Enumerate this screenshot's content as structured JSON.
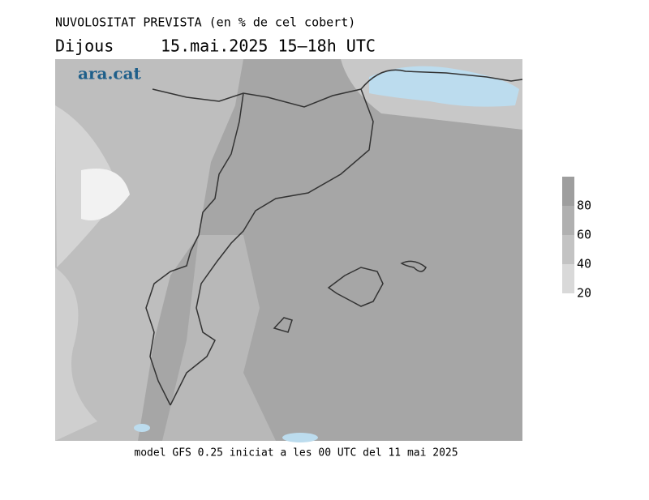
{
  "header": {
    "title": "NUVOLOSITAT PREVISTA (en % de cel cobert)",
    "day": "Dijous",
    "date": "15.mai.2025 15–18h UTC"
  },
  "logo": "ara.cat",
  "legend": {
    "range": [
      20,
      100
    ],
    "ticks": [
      20,
      40,
      60,
      80
    ],
    "colors": [
      "#d9d9d9",
      "#c3c3c3",
      "#b0b0b0",
      "#9e9e9e"
    ]
  },
  "footer": "model GFS 0.25 iniciat a les 00 UTC del 11 mai 2025"
}
